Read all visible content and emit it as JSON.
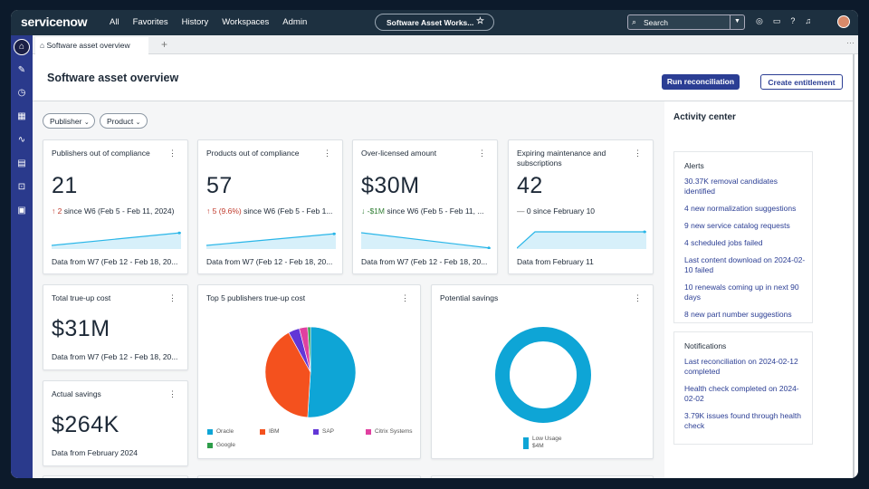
{
  "topnav": {
    "logo": "servicenow",
    "menu": [
      "All",
      "Favorites",
      "History",
      "Workspaces",
      "Admin"
    ],
    "context_label": "Software Asset Works...",
    "search_label": "Search"
  },
  "tabbar": {
    "tab_label": "Software asset overview",
    "plus": "+",
    "more": "···"
  },
  "page": {
    "title": "Software asset overview",
    "run_button": "Run reconciliation",
    "create_button": "Create entitlement",
    "filters": [
      "Publisher",
      "Product"
    ]
  },
  "cards": {
    "publishers": {
      "title": "Publishers out of compliance",
      "value": "21",
      "delta_arrow": "↑",
      "delta_value": "2",
      "delta_text": "since W6 (Feb 5 - Feb 11, 2024)",
      "footer": "Data from W7 (Feb 12 - Feb 18, 20..."
    },
    "products": {
      "title": "Products out of compliance",
      "value": "57",
      "delta_arrow": "↑",
      "delta_value": "5 (9.6%)",
      "delta_text": "since W6 (Feb 5 - Feb 1...",
      "footer": "Data from W7 (Feb 12 - Feb 18, 20..."
    },
    "overlicensed": {
      "title": "Over-licensed amount",
      "value": "$30M",
      "delta_arrow": "↓",
      "delta_value": "-$1M",
      "delta_text": "since W6 (Feb 5 - Feb 11, ...",
      "footer": "Data from W7 (Feb 12 - Feb 18, 20..."
    },
    "expiring": {
      "title": "Expiring maintenance and subscriptions",
      "value": "42",
      "delta_arrow": "—",
      "delta_value": "0",
      "delta_text": "since February 10",
      "footer": "Data from February 11"
    },
    "trueup": {
      "title": "Total true-up cost",
      "value": "$31M",
      "footer": "Data from W7 (Feb 12 - Feb 18, 20..."
    },
    "savings": {
      "title": "Actual savings",
      "value": "$264K",
      "footer": "Data from February 2024"
    },
    "top5": {
      "title": "Top 5 publishers true-up cost"
    },
    "potential": {
      "title": "Potential savings"
    }
  },
  "menu_glyph": "⋮",
  "chart_data": [
    {
      "type": "pie",
      "title": "Top 5 publishers true-up cost",
      "categories": [
        "Oracle",
        "IBM",
        "SAP",
        "Citrix Systems",
        "Google"
      ],
      "values": [
        51,
        41,
        4,
        3,
        1
      ],
      "colors": [
        "#0ea5d6",
        "#f4511e",
        "#6236d6",
        "#e040a0",
        "#2e9d4a"
      ]
    },
    {
      "type": "pie",
      "title": "Potential savings",
      "categories": [
        "Low Usage"
      ],
      "series": [
        {
          "name": "Low Usage",
          "values": [
            100
          ]
        }
      ],
      "value_label": "$4M",
      "colors": [
        "#0ea5d6"
      ]
    }
  ],
  "activity": {
    "title": "Activity center",
    "alerts_title": "Alerts",
    "alerts": [
      "30.37K removal candidates identified",
      "4 new normalization suggestions",
      "9 new service catalog requests",
      "4 scheduled jobs failed",
      "Last content download on 2024-02-10 failed",
      "10 renewals coming up in next 90 days",
      "8 new part number suggestions"
    ],
    "notifications_title": "Notifications",
    "notifications": [
      "Last reconciliation on 2024-02-12 completed",
      "Health check completed on 2024-02-02",
      "3.79K issues found through health check"
    ]
  },
  "colors": {
    "brand_nav": "#1d3040",
    "sidebar": "#2a3a8c",
    "primary": "#2b3e94",
    "spark": "#29b6e8"
  }
}
